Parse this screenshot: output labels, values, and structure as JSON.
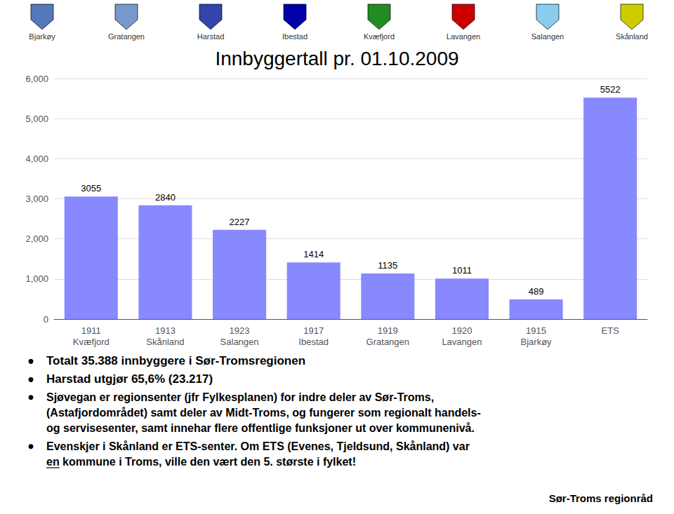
{
  "chart_data": {
    "type": "bar",
    "title": "Innbyggertall pr. 01.10.2009",
    "categories": [
      "1911\nKvæfjord",
      "1913\nSkånland",
      "1923\nSalangen",
      "1917\nIbestad",
      "1919\nGratangen",
      "1920\nLavangen",
      "1915\nBjarkøy",
      "ETS"
    ],
    "values": [
      3055,
      2840,
      2227,
      1414,
      1135,
      1011,
      489,
      5522
    ],
    "color": "#8888FF",
    "ylim": [
      0,
      6000
    ],
    "yticks": [
      0,
      1000,
      2000,
      3000,
      4000,
      5000,
      6000
    ],
    "grid": true,
    "data_labels": true,
    "annotations": {
      "bullets": [
        [
          "Totalt 35.388 innbyggere i Sør-Tromsregionen"
        ],
        [
          "Harstad utgjør 65,6% (23.217)"
        ],
        [
          "Sjøvegan er regionsenter (jfr Fylkesplanen) for indre deler av Sør-Troms,",
          "(Astafjordområdet) samt deler av Midt-Troms, og fungerer som regionalt handels-",
          "og servisesenter, samt innehar flere offentlige funksjoner ut over kommunenivå."
        ],
        [
          "Evenskjer i Skånland er ETS-senter. Om ETS (Evenes, Tjeldsund, Skånland) var",
          "en kommune i Troms, ville den vært den 5. største i fylket!"
        ]
      ],
      "footer": "Sør-Troms regionråd"
    },
    "icons": [
      {
        "label": "Bjarkøy",
        "color": "#5577BB"
      },
      {
        "label": "Gratangen",
        "color": "#7799CC"
      },
      {
        "label": "Harstad",
        "color": "#3344AA"
      },
      {
        "label": "Ibestad",
        "color": "#0000AA"
      },
      {
        "label": "Kvæfjord",
        "color": "#228B22"
      },
      {
        "label": "Lavangen",
        "color": "#CC0000"
      },
      {
        "label": "Salangen",
        "color": "#88CCEE"
      },
      {
        "label": "Skånland",
        "color": "#CCCC00"
      }
    ]
  }
}
